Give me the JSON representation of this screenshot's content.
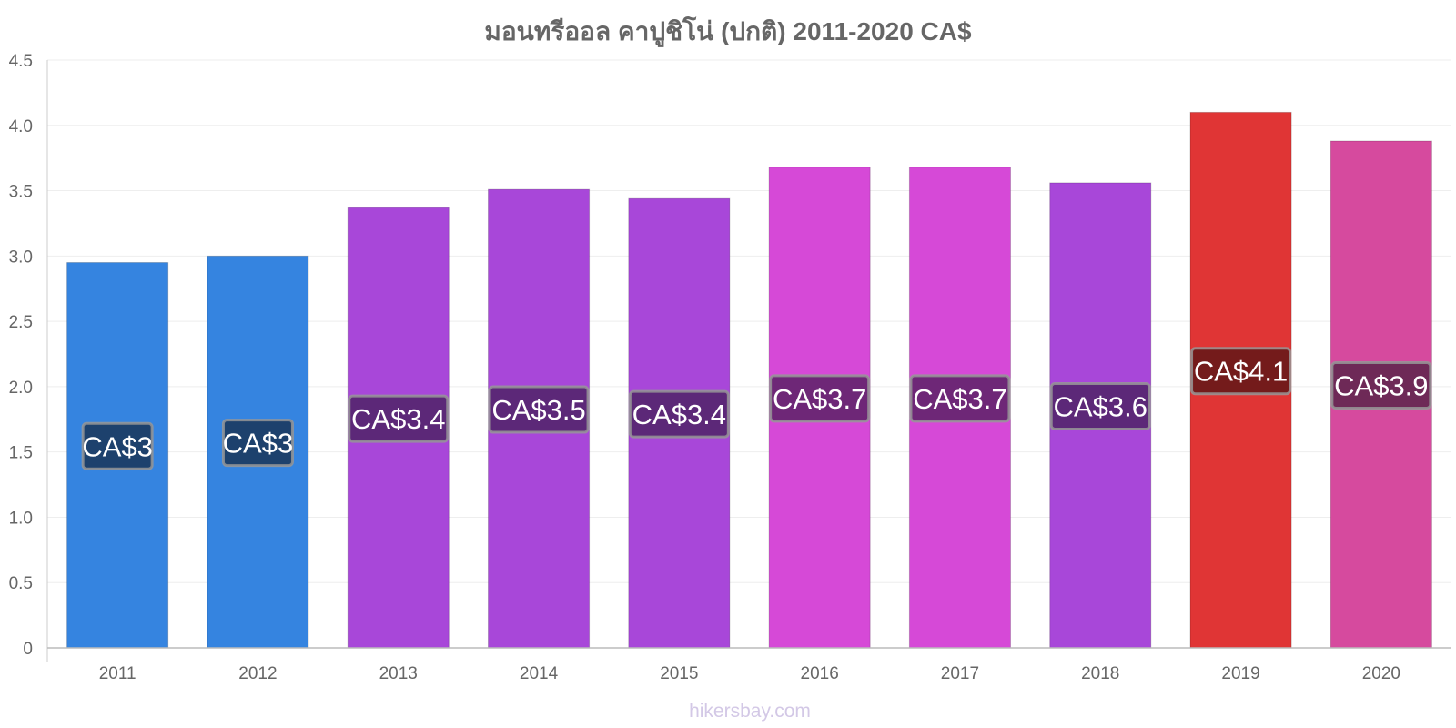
{
  "chart_data": {
    "type": "bar",
    "title": "มอนทรีออล คาปูชิโน่ (ปกติ) 2011-2020 CA$",
    "categories": [
      "2011",
      "2012",
      "2013",
      "2014",
      "2015",
      "2016",
      "2017",
      "2018",
      "2019",
      "2020"
    ],
    "values": [
      2.95,
      3.0,
      3.37,
      3.51,
      3.44,
      3.68,
      3.68,
      3.56,
      4.1,
      3.88
    ],
    "data_labels": [
      "CA$3",
      "CA$3",
      "CA$3.4",
      "CA$3.5",
      "CA$3.4",
      "CA$3.7",
      "CA$3.7",
      "CA$3.6",
      "CA$4.1",
      "CA$3.9"
    ],
    "bar_colors": [
      "#3584e0",
      "#3584e0",
      "#a847d9",
      "#a847d9",
      "#a847d9",
      "#d649d7",
      "#d649d7",
      "#a847d9",
      "#e03535",
      "#d64a9e"
    ],
    "label_colors": [
      "#1d416d",
      "#1d416d",
      "#5c2878",
      "#5c2878",
      "#5c2878",
      "#6e2777",
      "#6e2777",
      "#5c2878",
      "#741b1b",
      "#6e2957"
    ],
    "yticks": [
      "0",
      "0.5",
      "1.0",
      "1.5",
      "2.0",
      "2.5",
      "3.0",
      "3.5",
      "4.0",
      "4.5"
    ],
    "ylim": [
      0,
      4.5
    ],
    "xlabel": "",
    "ylabel": "",
    "grid": true,
    "legend": "none"
  },
  "watermark": "hikersbay.com"
}
